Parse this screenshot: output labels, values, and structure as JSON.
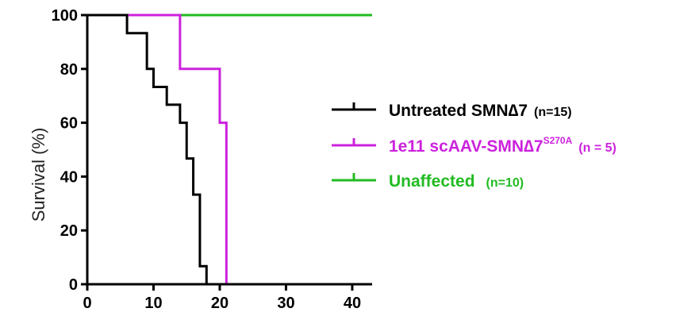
{
  "chart_data": {
    "type": "line",
    "title": "",
    "xlabel": "",
    "ylabel": "Survival (%)",
    "xlim": [
      0,
      43
    ],
    "ylim": [
      0,
      100
    ],
    "xticks": [
      0,
      10,
      20,
      30,
      40
    ],
    "yticks": [
      0,
      20,
      40,
      60,
      80,
      100
    ],
    "grid": false,
    "legend_position": "right",
    "series": [
      {
        "name": "Untreated SMN∆7",
        "n_label": "(n=15)",
        "color": "#000000",
        "step": true,
        "x": [
          0,
          6,
          9,
          10,
          12,
          14,
          15,
          16,
          17,
          18
        ],
        "y": [
          100,
          93.3,
          80,
          73.3,
          66.7,
          60,
          46.7,
          33.3,
          6.7,
          0
        ]
      },
      {
        "name": "1e11 scAAV-SMN∆7",
        "name_sup": "S270A",
        "n_label": "(n = 5)",
        "color": "#cc22dd",
        "step": true,
        "x": [
          0,
          14,
          20,
          21
        ],
        "y": [
          100,
          80,
          60,
          0
        ]
      },
      {
        "name": "Unaffected",
        "n_label": "(n=10)",
        "color": "#22bb22",
        "step": true,
        "x": [
          0,
          43
        ],
        "y": [
          100,
          100
        ]
      }
    ]
  }
}
